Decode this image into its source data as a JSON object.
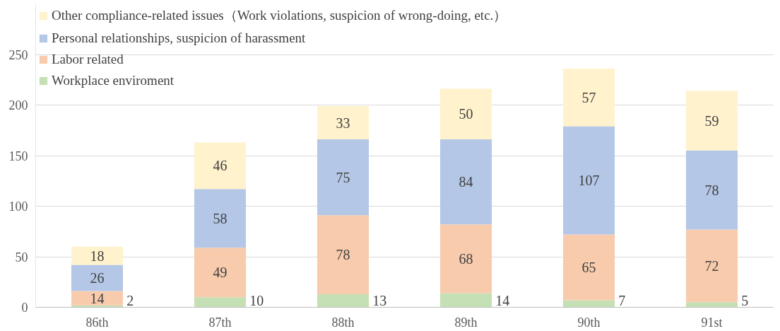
{
  "chart_data": {
    "type": "bar",
    "stacked": true,
    "categories": [
      "86th",
      "87th",
      "88th",
      "89th",
      "90th",
      "91st"
    ],
    "series": [
      {
        "name": "Workplace enviroment",
        "color": "#c5e0b4",
        "values": [
          2,
          10,
          13,
          14,
          7,
          5
        ]
      },
      {
        "name": "Labor related",
        "color": "#f8cbad",
        "values": [
          14,
          49,
          78,
          68,
          65,
          72
        ]
      },
      {
        "name": "Personal relationships, suspicion of harassment",
        "color": "#b4c7e7",
        "values": [
          26,
          58,
          75,
          84,
          107,
          78
        ]
      },
      {
        "name": "Other compliance-related issues（Work violations, suspicion of wrong-doing, etc.）",
        "color": "#fff2cc",
        "values": [
          18,
          46,
          33,
          50,
          57,
          59
        ]
      }
    ],
    "ylim": [
      0,
      300
    ],
    "yticks": [
      0,
      50,
      100,
      150,
      200,
      250
    ],
    "grid": "y",
    "legend": "top left",
    "data_labels": true
  }
}
